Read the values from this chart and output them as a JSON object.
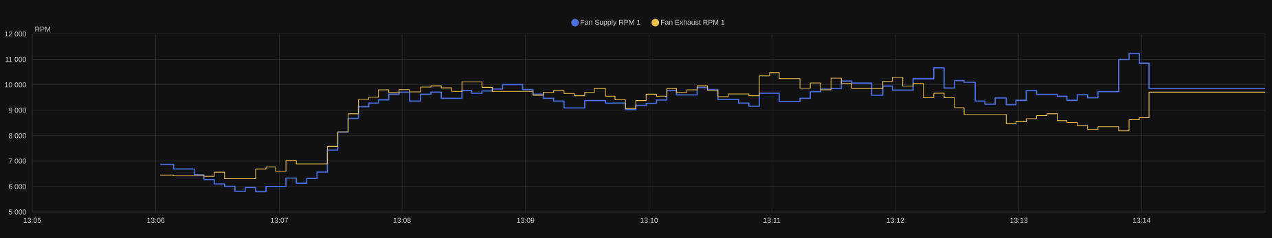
{
  "chart_data": {
    "type": "step",
    "ylabel": "RPM",
    "grid": true,
    "legend": "top",
    "xlim": [
      13.0833,
      13.25
    ],
    "ylim": [
      5000,
      12000
    ],
    "xticks": [
      {
        "value": 13.0833,
        "label": "13:05"
      },
      {
        "value": 13.1,
        "label": "13:06"
      },
      {
        "value": 13.1167,
        "label": "13:07"
      },
      {
        "value": 13.1333,
        "label": "13:08"
      },
      {
        "value": 13.15,
        "label": "13:09"
      },
      {
        "value": 13.1667,
        "label": "13:10"
      },
      {
        "value": 13.1833,
        "label": "13:11"
      },
      {
        "value": 13.2,
        "label": "13:12"
      },
      {
        "value": 13.2167,
        "label": "13:13"
      },
      {
        "value": 13.2333,
        "label": "13:14"
      }
    ],
    "yticks": [
      {
        "value": 5000,
        "label": "5 000"
      },
      {
        "value": 6000,
        "label": "6 000"
      },
      {
        "value": 7000,
        "label": "7 000"
      },
      {
        "value": 8000,
        "label": "8 000"
      },
      {
        "value": 9000,
        "label": "9 000"
      },
      {
        "value": 10000,
        "label": "10 000"
      },
      {
        "value": 11000,
        "label": "11 000"
      },
      {
        "value": 12000,
        "label": "12 000"
      }
    ],
    "series": [
      {
        "name": "Fan Supply RPM 1",
        "color": "#4a6ee0",
        "x": [
          13.1006,
          13.1024,
          13.1052,
          13.1065,
          13.1079,
          13.1093,
          13.1107,
          13.1121,
          13.1135,
          13.1149,
          13.1176,
          13.119,
          13.1204,
          13.1218,
          13.1232,
          13.1246,
          13.126,
          13.1274,
          13.1288,
          13.1301,
          13.1315,
          13.1329,
          13.1343,
          13.1358,
          13.1372,
          13.1386,
          13.1414,
          13.1427,
          13.1441,
          13.1455,
          13.1469,
          13.1496,
          13.151,
          13.1524,
          13.1538,
          13.1552,
          13.158,
          13.1608,
          13.1635,
          13.1649,
          13.1663,
          13.1677,
          13.1691,
          13.1704,
          13.1732,
          13.1746,
          13.176,
          13.1788,
          13.1802,
          13.1816,
          13.1843,
          13.1871,
          13.1885,
          13.1899,
          13.1913,
          13.1927,
          13.1941,
          13.1968,
          13.1983,
          13.1996,
          13.2024,
          13.2052,
          13.2066,
          13.208,
          13.2093,
          13.2108,
          13.2121,
          13.2135,
          13.215,
          13.2163,
          13.2177,
          13.2191,
          13.2219,
          13.2232,
          13.2246,
          13.226,
          13.2274,
          13.2302,
          13.2316,
          13.233,
          13.2343,
          13.25
        ],
        "values": [
          6870,
          6690,
          6460,
          6270,
          6100,
          6010,
          5810,
          5960,
          5800,
          6000,
          6330,
          6130,
          6320,
          6570,
          7430,
          8140,
          8680,
          9140,
          9280,
          9410,
          9630,
          9710,
          9360,
          9630,
          9710,
          9470,
          9780,
          9670,
          9760,
          9830,
          10010,
          9810,
          9630,
          9470,
          9360,
          9090,
          9380,
          9280,
          9020,
          9190,
          9270,
          9400,
          9780,
          9600,
          9890,
          9810,
          9430,
          9280,
          9160,
          9670,
          9340,
          9470,
          9730,
          9830,
          9850,
          10150,
          10070,
          9590,
          9950,
          9790,
          10240,
          10670,
          9870,
          10160,
          10100,
          9360,
          9240,
          9480,
          9220,
          9390,
          9770,
          9620,
          9550,
          9390,
          9610,
          9490,
          9730,
          11000,
          11230,
          10850,
          9860,
          9860
        ]
      },
      {
        "name": "Fan Exhaust RPM 1",
        "color": "#f2c14e",
        "x": [
          13.1006,
          13.1024,
          13.1065,
          13.1079,
          13.1093,
          13.1135,
          13.1149,
          13.1162,
          13.1176,
          13.119,
          13.1232,
          13.1246,
          13.126,
          13.1274,
          13.1288,
          13.1301,
          13.1315,
          13.1329,
          13.1343,
          13.1358,
          13.1372,
          13.1386,
          13.14,
          13.1414,
          13.1441,
          13.1455,
          13.151,
          13.1524,
          13.1538,
          13.1552,
          13.1566,
          13.158,
          13.1593,
          13.1608,
          13.1621,
          13.1635,
          13.1649,
          13.1663,
          13.1677,
          13.1691,
          13.1704,
          13.1718,
          13.1732,
          13.1746,
          13.176,
          13.1774,
          13.1802,
          13.1816,
          13.183,
          13.1843,
          13.1871,
          13.1885,
          13.1899,
          13.1913,
          13.1927,
          13.1941,
          13.1983,
          13.1996,
          13.201,
          13.2024,
          13.2038,
          13.2052,
          13.2066,
          13.208,
          13.2093,
          13.215,
          13.2163,
          13.2177,
          13.2191,
          13.2205,
          13.2219,
          13.2232,
          13.2246,
          13.226,
          13.2274,
          13.2302,
          13.2316,
          13.233,
          13.2343,
          13.25
        ],
        "values": [
          6450,
          6430,
          6400,
          6560,
          6310,
          6690,
          6770,
          6600,
          7020,
          6890,
          7580,
          8150,
          8860,
          9430,
          9510,
          9800,
          9690,
          9810,
          9720,
          9910,
          9960,
          9880,
          9740,
          10120,
          9900,
          9740,
          9590,
          9700,
          9770,
          9660,
          9570,
          9700,
          9860,
          9550,
          9410,
          9070,
          9380,
          9630,
          9550,
          9860,
          9700,
          9800,
          9960,
          9780,
          9530,
          9640,
          9570,
          10350,
          10480,
          10240,
          9870,
          10070,
          9800,
          10260,
          10050,
          9860,
          10130,
          10300,
          9950,
          10050,
          9490,
          9670,
          9490,
          9100,
          8830,
          8470,
          8550,
          8670,
          8790,
          8860,
          8590,
          8520,
          8390,
          8250,
          8350,
          8190,
          8630,
          8710,
          9710,
          9710
        ]
      }
    ]
  }
}
